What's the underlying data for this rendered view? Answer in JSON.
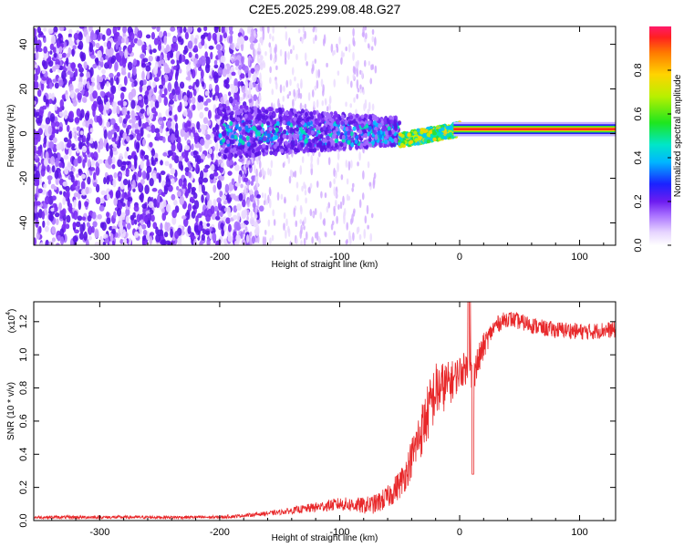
{
  "title": "C2E5.2025.299.08.48.G27",
  "colors": {
    "snr_line": "#e8282a",
    "spectrogram_low": "#7b3cf0",
    "spectrogram_high": "#e8282a"
  },
  "colorbar": {
    "label": "Normalized spectral amplitude",
    "range": [
      0.0,
      1.0
    ],
    "tick_labels": [
      "0.0",
      "0.2",
      "0.4",
      "0.6",
      "0.8"
    ],
    "colormap": "rainbow (white-purple-blue-cyan-green-yellow-red)"
  },
  "chart_data": [
    {
      "type": "heatmap",
      "xlabel": "Height of straight line (km)",
      "ylabel": "Frequency (Hz)",
      "xlim": [
        -355,
        130
      ],
      "ylim": [
        -50,
        48
      ],
      "x_ticks": [
        -300,
        -200,
        -100,
        0,
        100
      ],
      "x_tick_labels": [
        "-300",
        "-200",
        "-100",
        "0",
        "100"
      ],
      "y_ticks": [
        -40,
        -20,
        0,
        20,
        40
      ],
      "y_tick_labels": [
        "-40",
        "-20",
        "0",
        "20",
        "40"
      ],
      "grid": false,
      "features": [
        {
          "x_range": [
            -355,
            -180
          ],
          "frequency_range": [
            -50,
            48
          ],
          "amplitude": "0.1-0.2 (noise)"
        },
        {
          "x_range": [
            -200,
            -50
          ],
          "frequency_range": [
            -12,
            12
          ],
          "amplitude": "0.2-0.5"
        },
        {
          "x_range": [
            -50,
            0
          ],
          "frequency_center_from": -3,
          "frequency_center_to": 2,
          "amplitude": "0.5-1.0"
        },
        {
          "x_range": [
            0,
            130
          ],
          "frequency_center": 2,
          "amplitude": "1.0"
        }
      ]
    },
    {
      "type": "line",
      "xlabel": "Height of straight line (km)",
      "ylabel": "SNR (10 * v/v)",
      "y_scale_label": "(x10",
      "y_scale_exponent": "4",
      "y_scale_suffix": ")",
      "xlim": [
        -355,
        130
      ],
      "ylim": [
        0,
        1.32
      ],
      "x_ticks": [
        -300,
        -200,
        -100,
        0,
        100
      ],
      "x_tick_labels": [
        "-300",
        "-200",
        "-100",
        "0",
        "100"
      ],
      "y_ticks": [
        0.0,
        0.2,
        0.4,
        0.6,
        0.8,
        1.0,
        1.2
      ],
      "y_tick_labels": [
        "0.0",
        "0.2",
        "0.4",
        "0.6",
        "0.8",
        "1.0",
        "1.2"
      ],
      "grid": false,
      "series": [
        {
          "color": "#e8282a",
          "x": [
            -355,
            -300,
            -250,
            -200,
            -180,
            -150,
            -120,
            -100,
            -80,
            -70,
            -60,
            -50,
            -45,
            -40,
            -35,
            -30,
            -25,
            -20,
            -15,
            -10,
            -5,
            0,
            5,
            10,
            15,
            20,
            25,
            30,
            35,
            40,
            50,
            60,
            70,
            80,
            90,
            100,
            110,
            120,
            130
          ],
          "y": [
            0.02,
            0.02,
            0.02,
            0.02,
            0.03,
            0.05,
            0.08,
            0.1,
            0.09,
            0.1,
            0.14,
            0.22,
            0.28,
            0.38,
            0.48,
            0.58,
            0.68,
            0.78,
            0.8,
            0.82,
            0.85,
            0.9,
            0.92,
            0.88,
            0.95,
            1.05,
            1.12,
            1.18,
            1.2,
            1.22,
            1.2,
            1.18,
            1.16,
            1.15,
            1.15,
            1.14,
            1.14,
            1.15,
            1.15
          ],
          "noise_amplitude": [
            0.01,
            0.01,
            0.01,
            0.01,
            0.01,
            0.015,
            0.03,
            0.04,
            0.05,
            0.06,
            0.07,
            0.09,
            0.1,
            0.12,
            0.15,
            0.17,
            0.18,
            0.18,
            0.16,
            0.14,
            0.12,
            0.1,
            0.1,
            0.12,
            0.1,
            0.08,
            0.06,
            0.05,
            0.05,
            0.05,
            0.05,
            0.05,
            0.05,
            0.05,
            0.05,
            0.05,
            0.05,
            0.05,
            0.05
          ]
        }
      ]
    }
  ]
}
